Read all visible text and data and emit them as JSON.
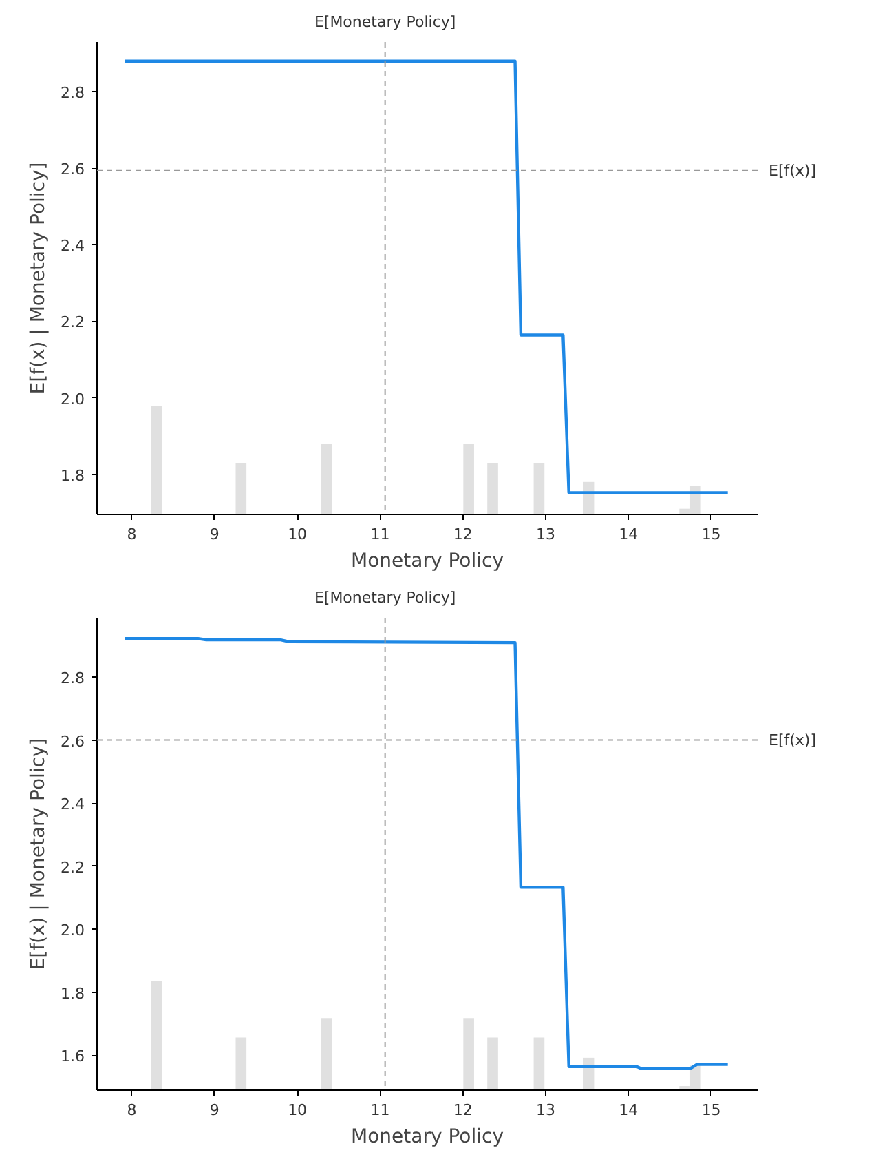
{
  "chart_data": [
    {
      "type": "line",
      "xlabel": "Monetary Policy",
      "ylabel": "E[f(x) | Monetary Policy]",
      "xlim": [
        7.58,
        15.56
      ],
      "xticks": [
        8,
        9,
        10,
        11,
        12,
        13,
        14,
        15
      ],
      "ylim": [
        1.695,
        2.93
      ],
      "yticks": [
        1.8,
        {
          "value": 2.0,
          "label": "2.0"
        },
        2.2,
        2.4,
        2.6,
        2.8
      ],
      "grid": false,
      "series": [
        {
          "type": "bar",
          "color": "#e0e0e0",
          "x": [
            8.3,
            9.32,
            10.35,
            12.07,
            12.36,
            12.92,
            13.52,
            14.68,
            14.81
          ],
          "base": [
            1.695,
            1.695,
            1.695,
            1.695,
            1.695,
            1.695,
            1.695,
            1.695,
            1.695
          ],
          "values": [
            0.283,
            0.135,
            0.185,
            0.185,
            0.135,
            0.135,
            0.085,
            0.015,
            0.075
          ]
        },
        {
          "color": "#1e88e5",
          "x": [
            7.92,
            12.63,
            12.7,
            13.21,
            13.28,
            15.2
          ],
          "values": [
            2.88,
            2.88,
            2.164,
            2.164,
            1.752,
            1.752
          ]
        }
      ],
      "ref_lines": [
        {
          "axis": "x",
          "value": 11.06,
          "label": "E[Monetary Policy]",
          "color": "#999999",
          "line_style": "dashed"
        },
        {
          "axis": "y",
          "value": 2.594,
          "label": "E[f(x)]",
          "color": "#999999",
          "line_style": "dashed"
        }
      ]
    },
    {
      "type": "line",
      "xlabel": "Monetary Policy",
      "ylabel": "E[f(x) | Monetary Policy]",
      "xlim": [
        7.58,
        15.56
      ],
      "xticks": [
        8,
        9,
        10,
        11,
        12,
        13,
        14,
        15
      ],
      "ylim": [
        1.489,
        2.988
      ],
      "yticks": [
        1.6,
        1.8,
        {
          "value": 2.0,
          "label": "2.0"
        },
        2.2,
        2.4,
        2.6,
        2.8
      ],
      "grid": false,
      "series": [
        {
          "type": "bar",
          "color": "#e0e0e0",
          "x": [
            8.3,
            9.32,
            10.35,
            12.07,
            12.36,
            12.92,
            13.52,
            14.68,
            14.81
          ],
          "base": [
            1.489,
            1.489,
            1.489,
            1.489,
            1.489,
            1.489,
            1.489,
            1.489,
            1.489
          ],
          "values": [
            0.346,
            0.167,
            0.229,
            0.229,
            0.167,
            0.167,
            0.103,
            0.013,
            0.078
          ]
        },
        {
          "color": "#1e88e5",
          "x": [
            7.92,
            8.8,
            8.9,
            9.8,
            9.9,
            12.63,
            12.7,
            13.21,
            13.28,
            14.1,
            14.15,
            14.75,
            14.83,
            15.2
          ],
          "values": [
            2.922,
            2.922,
            2.918,
            2.918,
            2.912,
            2.909,
            2.133,
            2.133,
            1.564,
            1.564,
            1.558,
            1.558,
            1.571,
            1.571
          ]
        }
      ],
      "ref_lines": [
        {
          "axis": "x",
          "value": 11.06,
          "label": "E[Monetary Policy]",
          "color": "#999999",
          "line_style": "dashed"
        },
        {
          "axis": "y",
          "value": 2.6,
          "label": "E[f(x)]",
          "color": "#999999",
          "line_style": "dashed"
        }
      ]
    }
  ]
}
